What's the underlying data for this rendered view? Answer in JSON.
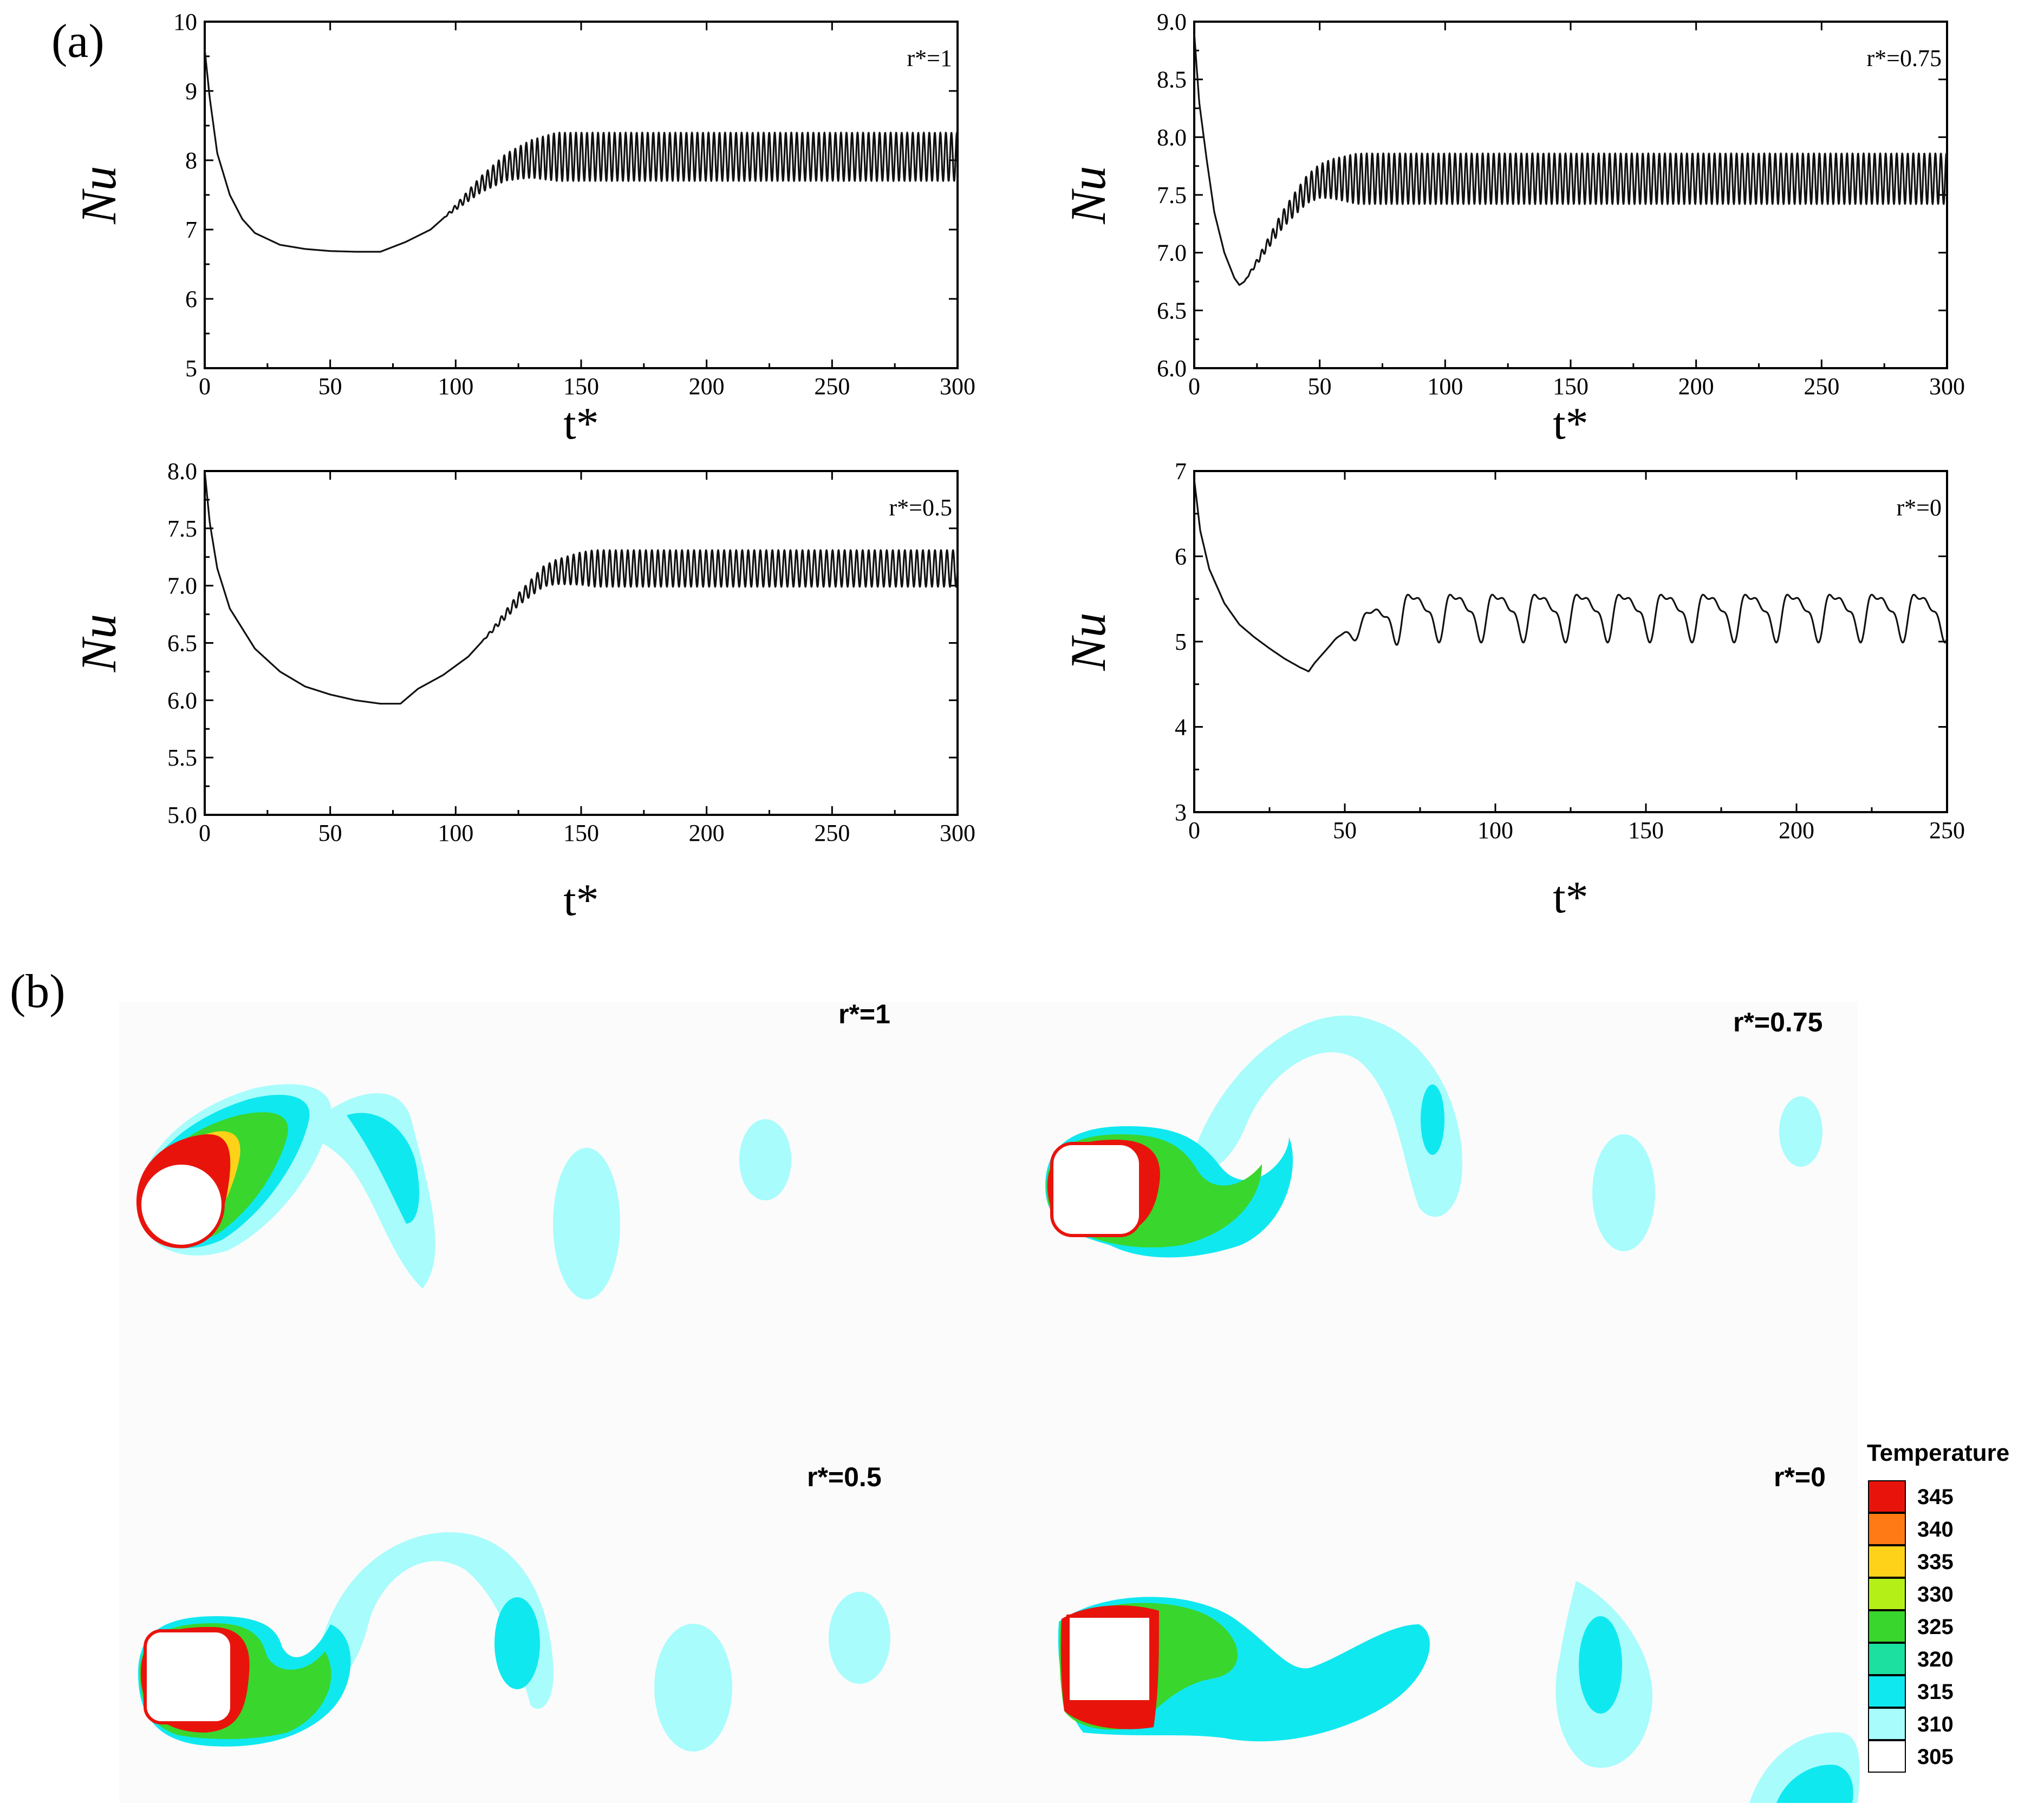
{
  "panel_labels": {
    "a": "(a)",
    "b": "(b)"
  },
  "chart_data": [
    {
      "type": "line",
      "annotation": "r*=1",
      "xlabel": "t*",
      "ylabel": "Nu",
      "xlim": [
        0,
        300
      ],
      "ylim": [
        5,
        10
      ],
      "xticks": [
        0,
        50,
        100,
        150,
        200,
        250,
        300
      ],
      "yticks": [
        5,
        6,
        7,
        8,
        9,
        10
      ],
      "ytick_labels": [
        "5",
        "6",
        "7",
        "8",
        "9",
        "10"
      ],
      "x": [
        0,
        2,
        5,
        10,
        15,
        20,
        30,
        40,
        50,
        60,
        70,
        80,
        90,
        100,
        110,
        120,
        130,
        140,
        150,
        300
      ],
      "y": [
        9.6,
        8.9,
        8.1,
        7.5,
        7.15,
        6.95,
        6.78,
        6.72,
        6.69,
        6.68,
        6.68,
        6.82,
        7.0,
        7.32,
        7.65,
        7.9,
        8.02,
        8.05,
        8.05,
        8.05
      ],
      "oscillation_start": 95,
      "oscillation_amplitude": [
        0,
        0.35
      ],
      "oscillation_period": 2.2
    },
    {
      "type": "line",
      "annotation": "r*=0.75",
      "xlabel": "t*",
      "ylabel": "Nu",
      "xlim": [
        0,
        300
      ],
      "ylim": [
        6,
        9
      ],
      "xticks": [
        0,
        50,
        100,
        150,
        200,
        250,
        300
      ],
      "yticks": [
        6.0,
        6.5,
        7.0,
        7.5,
        8.0,
        8.5,
        9.0
      ],
      "ytick_labels": [
        "6.0",
        "6.5",
        "7.0",
        "7.5",
        "8.0",
        "8.5",
        "9.0"
      ],
      "x": [
        0,
        2,
        5,
        8,
        12,
        16,
        18,
        20,
        25,
        30,
        35,
        40,
        45,
        50,
        55,
        60,
        300
      ],
      "y": [
        8.9,
        8.3,
        7.8,
        7.35,
        7.0,
        6.78,
        6.72,
        6.75,
        6.92,
        7.1,
        7.28,
        7.42,
        7.55,
        7.62,
        7.64,
        7.64,
        7.64
      ],
      "oscillation_start": 20,
      "oscillation_amplitude": [
        0,
        0.22
      ],
      "oscillation_period": 2.2
    },
    {
      "type": "line",
      "annotation": "r*=0.5",
      "xlabel": "t*",
      "ylabel": "Nu",
      "xlim": [
        0,
        300
      ],
      "ylim": [
        5.0,
        8.0
      ],
      "xticks": [
        0,
        50,
        100,
        150,
        200,
        250,
        300
      ],
      "yticks": [
        5.0,
        5.5,
        6.0,
        6.5,
        7.0,
        7.5,
        8.0
      ],
      "ytick_labels": [
        "5.0",
        "5.5",
        "6.0",
        "6.5",
        "7.0",
        "7.5",
        "8.0"
      ],
      "x": [
        0,
        2,
        5,
        10,
        20,
        30,
        40,
        50,
        60,
        70,
        78,
        85,
        95,
        105,
        115,
        125,
        135,
        140,
        150,
        160,
        300
      ],
      "y": [
        8.0,
        7.55,
        7.15,
        6.8,
        6.45,
        6.25,
        6.12,
        6.05,
        6.0,
        5.97,
        5.97,
        6.1,
        6.22,
        6.38,
        6.62,
        6.88,
        7.08,
        7.12,
        7.15,
        7.15,
        7.15
      ],
      "oscillation_start": 110,
      "oscillation_amplitude": [
        0,
        0.16
      ],
      "oscillation_period": 2.4
    },
    {
      "type": "line",
      "annotation": "r*=0",
      "xlabel": "t*",
      "ylabel": "Nu",
      "xlim": [
        0,
        250
      ],
      "ylim": [
        3,
        7
      ],
      "xticks": [
        0,
        50,
        100,
        150,
        200,
        250
      ],
      "yticks": [
        3,
        4,
        5,
        6,
        7
      ],
      "ytick_labels": [
        "3",
        "4",
        "5",
        "6",
        "7"
      ],
      "x": [
        0,
        2,
        5,
        10,
        15,
        20,
        25,
        30,
        35,
        38,
        40,
        45,
        50,
        55,
        60
      ],
      "y": [
        6.9,
        6.3,
        5.85,
        5.45,
        5.2,
        5.05,
        4.92,
        4.8,
        4.7,
        4.65,
        4.75,
        4.95,
        5.05,
        5.08,
        5.1
      ],
      "oscillation_start": 45,
      "oscillation_mean": 5.35,
      "oscillation_amplitude": [
        0.1,
        0.25
      ],
      "oscillation_period": 14
    }
  ],
  "contours": {
    "panels": [
      {
        "label": "r*=1",
        "shape": "circle"
      },
      {
        "label": "r*=0.75",
        "shape": "rounded-square"
      },
      {
        "label": "r*=0.5",
        "shape": "rounded-square"
      },
      {
        "label": "r*=0",
        "shape": "square"
      }
    ],
    "legend": {
      "title": "Temperature",
      "levels": [
        {
          "label": "345",
          "color": "#e8140c"
        },
        {
          "label": "340",
          "color": "#ff7a14"
        },
        {
          "label": "335",
          "color": "#ffd21a"
        },
        {
          "label": "330",
          "color": "#b4f018"
        },
        {
          "label": "325",
          "color": "#39d62d"
        },
        {
          "label": "320",
          "color": "#1ce0a0"
        },
        {
          "label": "315",
          "color": "#10e8f0"
        },
        {
          "label": "310",
          "color": "#a8fcfc"
        },
        {
          "label": "305",
          "color": "#ffffff"
        }
      ]
    }
  },
  "colors": {
    "line": "#111111",
    "axis": "#000000"
  }
}
